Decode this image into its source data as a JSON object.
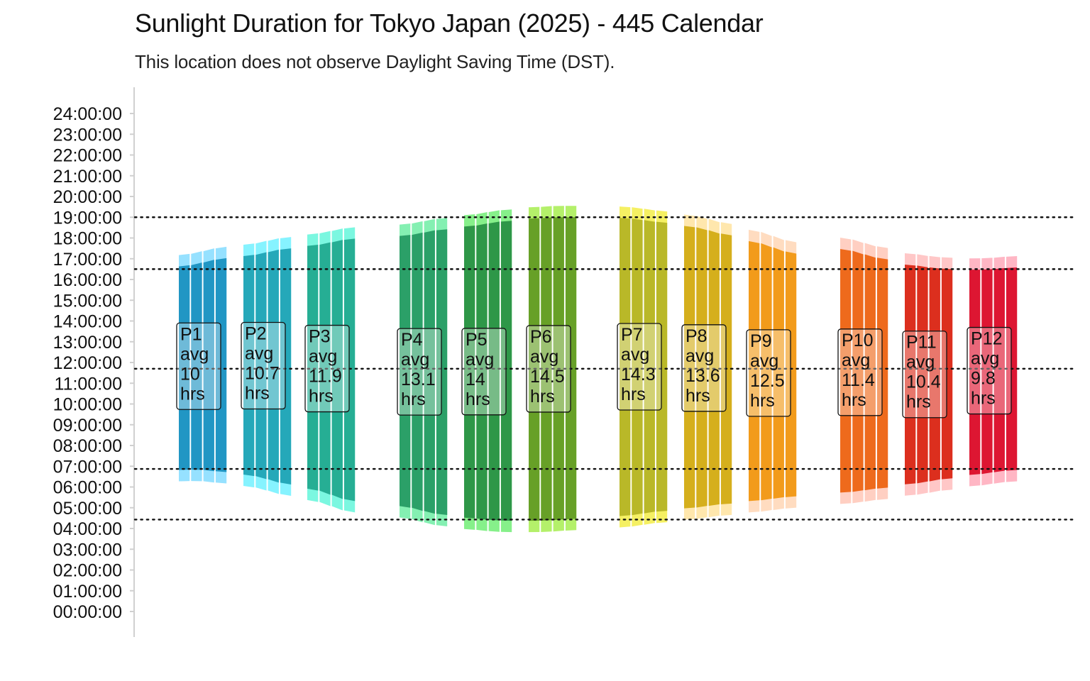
{
  "chart_data": {
    "type": "bar",
    "title": "Sunlight Duration for Tokyo Japan (2025) - 445 Calendar",
    "subtitle": "This location does not observe Daylight Saving Time (DST).",
    "xlabel": "",
    "ylabel": "",
    "ylim": [
      0,
      24
    ],
    "grid": false,
    "yticks": [
      "00:00:00",
      "01:00:00",
      "02:00:00",
      "03:00:00",
      "04:00:00",
      "05:00:00",
      "06:00:00",
      "07:00:00",
      "08:00:00",
      "09:00:00",
      "10:00:00",
      "11:00:00",
      "12:00:00",
      "13:00:00",
      "14:00:00",
      "15:00:00",
      "16:00:00",
      "17:00:00",
      "18:00:00",
      "19:00:00",
      "20:00:00",
      "21:00:00",
      "22:00:00",
      "23:00:00",
      "24:00:00"
    ],
    "reference_lines_hours": [
      4.43,
      6.87,
      11.7,
      16.5,
      19.0
    ],
    "periods": [
      {
        "label": "P1",
        "avg_label": "avg",
        "avg_value": "10",
        "unit": "hrs",
        "color": "#2196c4",
        "twilight_color": "#96e1ff",
        "weeks": [
          {
            "sunrise": 6.82,
            "sunset": 16.63
          },
          {
            "sunrise": 6.85,
            "sunset": 16.75
          },
          {
            "sunrise": 6.8,
            "sunset": 16.88
          },
          {
            "sunrise": 6.72,
            "sunset": 17.03
          }
        ]
      },
      {
        "label": "P2",
        "avg_label": "avg",
        "avg_value": "10.7",
        "unit": "hrs",
        "color": "#25a8b9",
        "twilight_color": "#86f3ff",
        "weeks": [
          {
            "sunrise": 6.6,
            "sunset": 17.13
          },
          {
            "sunrise": 6.45,
            "sunset": 17.25
          },
          {
            "sunrise": 6.3,
            "sunset": 17.38
          },
          {
            "sunrise": 6.12,
            "sunset": 17.5
          }
        ]
      },
      {
        "label": "P3",
        "avg_label": "avg",
        "avg_value": "11.9",
        "unit": "hrs",
        "color": "#26ae94",
        "twilight_color": "#7bf7e0",
        "weeks": [
          {
            "sunrise": 5.92,
            "sunset": 17.62
          },
          {
            "sunrise": 5.73,
            "sunset": 17.73
          },
          {
            "sunrise": 5.52,
            "sunset": 17.85
          },
          {
            "sunrise": 5.32,
            "sunset": 17.97
          }
        ]
      },
      {
        "label": "P4",
        "avg_label": "avg",
        "avg_value": "13.1",
        "unit": "hrs",
        "color": "#2ba068",
        "twilight_color": "#84f0b2",
        "weeks": [
          {
            "sunrise": 5.08,
            "sunset": 18.1
          },
          {
            "sunrise": 4.92,
            "sunset": 18.2
          },
          {
            "sunrise": 4.77,
            "sunset": 18.32
          },
          {
            "sunrise": 4.65,
            "sunset": 18.42
          }
        ]
      },
      {
        "label": "P5",
        "avg_label": "avg",
        "avg_value": "14",
        "unit": "hrs",
        "color": "#2e9748",
        "twilight_color": "#86f08a",
        "weeks": [
          {
            "sunrise": 4.52,
            "sunset": 18.55
          },
          {
            "sunrise": 4.45,
            "sunset": 18.65
          },
          {
            "sunrise": 4.4,
            "sunset": 18.75
          },
          {
            "sunrise": 4.37,
            "sunset": 18.83
          }
        ]
      },
      {
        "label": "P6",
        "avg_label": "avg",
        "avg_value": "14.5",
        "unit": "hrs",
        "color": "#67a027",
        "twilight_color": "#b4f06a",
        "weeks": [
          {
            "sunrise": 4.37,
            "sunset": 18.93
          },
          {
            "sunrise": 4.38,
            "sunset": 18.98
          },
          {
            "sunrise": 4.42,
            "sunset": 19.0
          },
          {
            "sunrise": 4.47,
            "sunset": 19.0
          }
        ]
      },
      {
        "label": "P7",
        "avg_label": "avg",
        "avg_value": "14.3",
        "unit": "hrs",
        "color": "#b9b828",
        "twilight_color": "#f5f063",
        "weeks": [
          {
            "sunrise": 4.6,
            "sunset": 18.97
          },
          {
            "sunrise": 4.68,
            "sunset": 18.9
          },
          {
            "sunrise": 4.77,
            "sunset": 18.83
          },
          {
            "sunrise": 4.85,
            "sunset": 18.73
          }
        ]
      },
      {
        "label": "P8",
        "avg_label": "avg",
        "avg_value": "13.6",
        "unit": "hrs",
        "color": "#d5af1c",
        "twilight_color": "#ffe7ad",
        "weeks": [
          {
            "sunrise": 4.97,
            "sunset": 18.58
          },
          {
            "sunrise": 5.05,
            "sunset": 18.45
          },
          {
            "sunrise": 5.13,
            "sunset": 18.3
          },
          {
            "sunrise": 5.2,
            "sunset": 18.13
          }
        ]
      },
      {
        "label": "P9",
        "avg_label": "avg",
        "avg_value": "12.5",
        "unit": "hrs",
        "color": "#f29b1b",
        "twilight_color": "#ffdcc0",
        "weeks": [
          {
            "sunrise": 5.32,
            "sunset": 17.85
          },
          {
            "sunrise": 5.4,
            "sunset": 17.65
          },
          {
            "sunrise": 5.47,
            "sunset": 17.45
          },
          {
            "sunrise": 5.55,
            "sunset": 17.25
          }
        ]
      },
      {
        "label": "P10",
        "avg_label": "avg",
        "avg_value": "11.4",
        "unit": "hrs",
        "color": "#ee6a1c",
        "twilight_color": "#ffcfc2",
        "weeks": [
          {
            "sunrise": 5.73,
            "sunset": 17.47
          },
          {
            "sunrise": 5.8,
            "sunset": 17.3
          },
          {
            "sunrise": 5.88,
            "sunset": 17.13
          },
          {
            "sunrise": 5.97,
            "sunset": 16.97
          }
        ]
      },
      {
        "label": "P11",
        "avg_label": "avg",
        "avg_value": "10.4",
        "unit": "hrs",
        "color": "#dc2f1e",
        "twilight_color": "#ffc7c7",
        "weeks": [
          {
            "sunrise": 6.13,
            "sunset": 16.72
          },
          {
            "sunrise": 6.22,
            "sunset": 16.62
          },
          {
            "sunrise": 6.32,
            "sunset": 16.55
          },
          {
            "sunrise": 6.42,
            "sunset": 16.5
          }
        ]
      },
      {
        "label": "P12",
        "avg_label": "avg",
        "avg_value": "9.8",
        "unit": "hrs",
        "color": "#dd1632",
        "twilight_color": "#ffb6c4",
        "weeks": [
          {
            "sunrise": 6.58,
            "sunset": 16.47
          },
          {
            "sunrise": 6.67,
            "sunset": 16.48
          },
          {
            "sunrise": 6.75,
            "sunset": 16.52
          },
          {
            "sunrise": 6.82,
            "sunset": 16.58
          }
        ]
      }
    ]
  }
}
